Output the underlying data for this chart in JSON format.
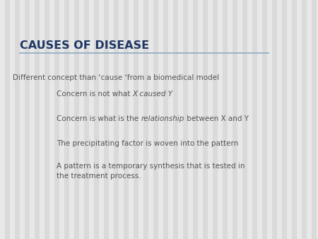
{
  "title": "CAUSES OF DISEASE",
  "title_color": "#1F3864",
  "title_fontsize": 11.5,
  "line_color": "#8EA9C1",
  "bg_color_light": "#F0F0F0",
  "bg_color_dark": "#D8D8D8",
  "body_color": "#555555",
  "body_fontsize": 7.5,
  "line1": "Different concept than ‘cause ‘from a biomedical model",
  "bullet1_n1": "Concern is not what ",
  "bullet1_i1": "X caused Y",
  "bullet2_n1": "Concern is what is the ",
  "bullet2_i1": "relationship",
  "bullet2_n2": " between X and Y",
  "bullet3": "The precipitating factor is woven into the pattern",
  "bullet4_line1": "A pattern is a temporary synthesis that is tested in",
  "bullet4_line2": "the treatment process."
}
